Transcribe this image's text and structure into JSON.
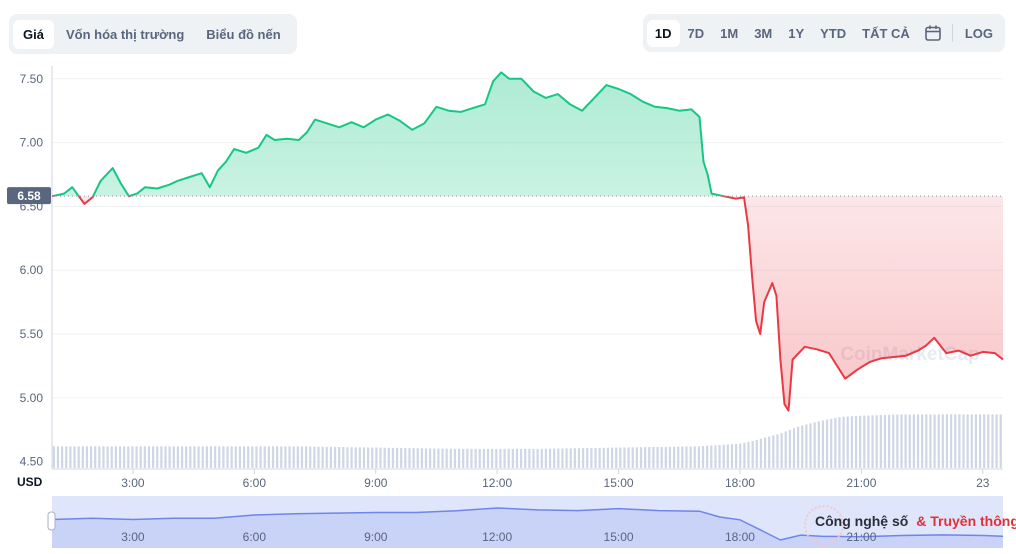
{
  "tabs": [
    {
      "label": "Giá",
      "active": true
    },
    {
      "label": "Vốn hóa thị trường",
      "active": false
    },
    {
      "label": "Biểu đồ nến",
      "active": false
    }
  ],
  "ranges": [
    {
      "label": "1D",
      "active": true
    },
    {
      "label": "7D",
      "active": false
    },
    {
      "label": "1M",
      "active": false
    },
    {
      "label": "3M",
      "active": false
    },
    {
      "label": "1Y",
      "active": false
    },
    {
      "label": "YTD",
      "active": false
    },
    {
      "label": "TẤT CẢ",
      "active": false
    }
  ],
  "calendar_icon": "calendar-icon",
  "log_label": "LOG",
  "currency_label": "USD",
  "current_price_label": "6.58",
  "watermark_text": "CoinMarketCap",
  "overlay_logo": {
    "part1": "Công nghệ số",
    "part2": "& Truyền thông"
  },
  "colors": {
    "up": "#16c784",
    "down": "#ea3943",
    "brush": "#dfe5fb",
    "volume": "#cfd6e4"
  },
  "chart_data": {
    "type": "line",
    "x_unit": "hour",
    "reference_value": 6.58,
    "ylim": [
      4.45,
      7.6
    ],
    "xlim": [
      1.0,
      24.5
    ],
    "y_ticks": [
      7.5,
      7.0,
      6.5,
      6.0,
      5.5,
      5.0,
      4.5
    ],
    "y_tick_labels": [
      "7.50",
      "7.00",
      "6.50",
      "6.00",
      "5.50",
      "5.00",
      "4.50"
    ],
    "x_ticks": [
      3,
      6,
      9,
      12,
      15,
      18,
      21,
      24
    ],
    "x_tick_labels": [
      "3:00",
      "6:00",
      "9:00",
      "12:00",
      "15:00",
      "18:00",
      "21:00",
      "23"
    ],
    "navigator_tick_labels": [
      "3:00",
      "6:00",
      "9:00",
      "12:00",
      "15:00",
      "18:00",
      "21:00"
    ],
    "price": {
      "x": [
        1.0,
        1.3,
        1.5,
        1.8,
        2.0,
        2.2,
        2.5,
        2.7,
        2.9,
        3.1,
        3.3,
        3.6,
        3.9,
        4.1,
        4.4,
        4.7,
        4.9,
        5.1,
        5.3,
        5.5,
        5.8,
        6.1,
        6.3,
        6.5,
        6.8,
        7.1,
        7.3,
        7.5,
        7.8,
        8.1,
        8.4,
        8.7,
        9.0,
        9.3,
        9.6,
        9.9,
        10.2,
        10.5,
        10.8,
        11.1,
        11.4,
        11.7,
        11.9,
        12.1,
        12.3,
        12.6,
        12.9,
        13.2,
        13.5,
        13.8,
        14.1,
        14.4,
        14.7,
        15.0,
        15.3,
        15.6,
        15.9,
        16.2,
        16.5,
        16.8,
        17.0,
        17.1,
        17.2,
        17.3,
        17.6,
        17.9,
        18.1,
        18.2,
        18.3,
        18.4,
        18.5,
        18.6,
        18.8,
        18.9,
        19.0,
        19.1,
        19.2,
        19.3,
        19.6,
        19.9,
        20.2,
        20.4,
        20.6,
        20.9,
        21.2,
        21.5,
        21.8,
        22.1,
        22.4,
        22.6,
        22.8,
        23.1,
        23.4,
        23.7,
        24.0,
        24.3,
        24.5
      ],
      "y": [
        6.58,
        6.6,
        6.65,
        6.52,
        6.57,
        6.7,
        6.8,
        6.68,
        6.58,
        6.6,
        6.65,
        6.64,
        6.67,
        6.7,
        6.73,
        6.76,
        6.65,
        6.78,
        6.85,
        6.95,
        6.92,
        6.96,
        7.06,
        7.02,
        7.03,
        7.02,
        7.08,
        7.18,
        7.15,
        7.12,
        7.16,
        7.12,
        7.18,
        7.22,
        7.17,
        7.1,
        7.15,
        7.28,
        7.25,
        7.24,
        7.27,
        7.3,
        7.48,
        7.55,
        7.5,
        7.5,
        7.4,
        7.35,
        7.38,
        7.3,
        7.25,
        7.35,
        7.45,
        7.42,
        7.38,
        7.32,
        7.28,
        7.27,
        7.25,
        7.26,
        7.2,
        6.85,
        6.75,
        6.6,
        6.58,
        6.56,
        6.57,
        6.35,
        5.95,
        5.6,
        5.5,
        5.75,
        5.9,
        5.8,
        5.3,
        4.95,
        4.9,
        5.3,
        5.4,
        5.38,
        5.35,
        5.25,
        5.15,
        5.22,
        5.28,
        5.31,
        5.32,
        5.33,
        5.37,
        5.41,
        5.47,
        5.35,
        5.37,
        5.33,
        5.36,
        5.35,
        5.3
      ]
    },
    "volume": {
      "x": [
        1.0,
        3.0,
        5.0,
        7.0,
        9.0,
        11.0,
        13.0,
        15.0,
        17.0,
        17.5,
        18.0,
        18.3,
        19.0,
        19.5,
        20.0,
        20.5,
        21.0,
        22.0,
        23.0,
        24.0,
        24.5
      ],
      "y": [
        4.62,
        4.62,
        4.62,
        4.62,
        4.61,
        4.6,
        4.6,
        4.61,
        4.62,
        4.63,
        4.64,
        4.66,
        4.72,
        4.78,
        4.82,
        4.85,
        4.86,
        4.87,
        4.87,
        4.87,
        4.87
      ]
    },
    "navigator": {
      "x": [
        1.0,
        2.0,
        3.0,
        4.0,
        5.0,
        6.0,
        7.0,
        8.0,
        9.0,
        10.0,
        11.0,
        12.0,
        13.0,
        14.0,
        15.0,
        16.0,
        17.0,
        17.5,
        18.0,
        18.5,
        19.0,
        19.5,
        20.0,
        21.0,
        22.0,
        23.0,
        24.0,
        24.5
      ],
      "y": [
        6.6,
        6.7,
        6.6,
        6.7,
        6.7,
        6.95,
        7.05,
        7.1,
        7.15,
        7.15,
        7.28,
        7.5,
        7.35,
        7.3,
        7.45,
        7.3,
        7.25,
        6.8,
        6.58,
        5.8,
        5.0,
        5.38,
        5.3,
        5.25,
        5.35,
        5.4,
        5.35,
        5.3
      ]
    }
  }
}
